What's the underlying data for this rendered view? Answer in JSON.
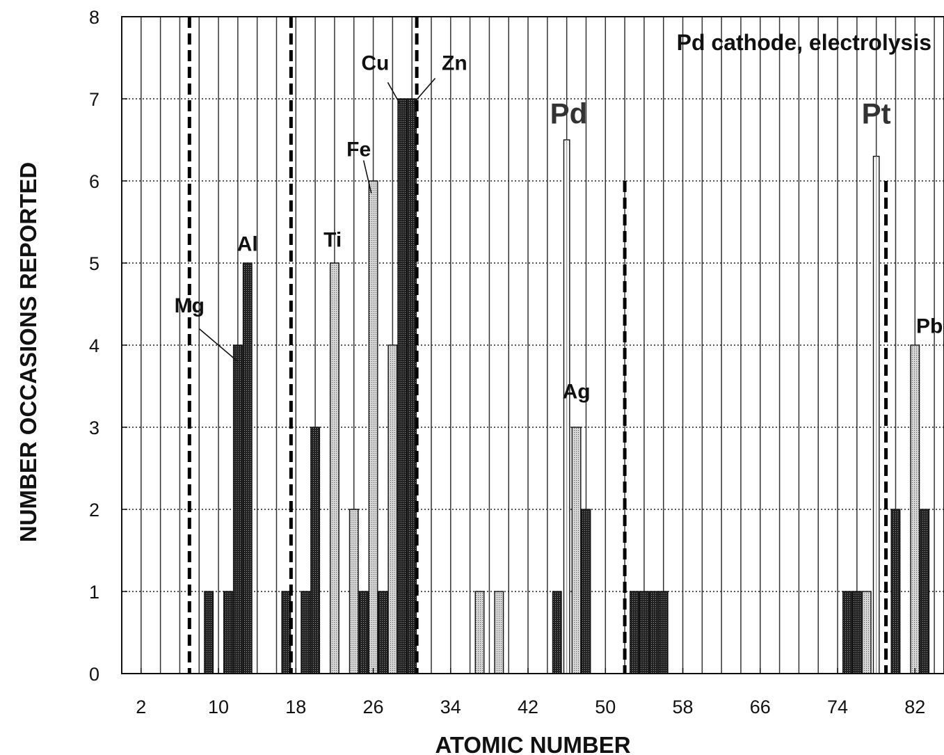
{
  "chart_data": {
    "type": "bar",
    "title": "Pd cathode, electrolysis",
    "xlabel": "ATOMIC NUMBER",
    "ylabel": "NUMBER OCCASIONS REPORTED",
    "xlim": [
      0,
      85
    ],
    "ylim": [
      0,
      8
    ],
    "xticks": [
      2,
      10,
      18,
      26,
      34,
      42,
      50,
      58,
      66,
      74,
      82
    ],
    "yticks": [
      0,
      1,
      2,
      3,
      4,
      5,
      6,
      7,
      8
    ],
    "grid": {
      "vertical_step": 2,
      "horizontal_dotted": true
    },
    "bars": [
      {
        "x": 9,
        "value": 1,
        "fill": "dark"
      },
      {
        "x": 11,
        "value": 1,
        "fill": "dark"
      },
      {
        "x": 12,
        "value": 4,
        "fill": "dark"
      },
      {
        "x": 13,
        "value": 5,
        "fill": "dark"
      },
      {
        "x": 17,
        "value": 1,
        "fill": "dark"
      },
      {
        "x": 19,
        "value": 1,
        "fill": "dark"
      },
      {
        "x": 20,
        "value": 3,
        "fill": "dark"
      },
      {
        "x": 22,
        "value": 5,
        "fill": "light"
      },
      {
        "x": 24,
        "value": 2,
        "fill": "light"
      },
      {
        "x": 25,
        "value": 1,
        "fill": "dark"
      },
      {
        "x": 26,
        "value": 6,
        "fill": "light"
      },
      {
        "x": 27,
        "value": 1,
        "fill": "dark"
      },
      {
        "x": 28,
        "value": 4,
        "fill": "light"
      },
      {
        "x": 29,
        "value": 7,
        "fill": "dark"
      },
      {
        "x": 30,
        "value": 7,
        "fill": "dark"
      },
      {
        "x": 37,
        "value": 1,
        "fill": "light"
      },
      {
        "x": 39,
        "value": 1,
        "fill": "light"
      },
      {
        "x": 45,
        "value": 1,
        "fill": "dark"
      },
      {
        "x": 46,
        "value": 6.5,
        "fill": "hollow"
      },
      {
        "x": 47,
        "value": 3,
        "fill": "light"
      },
      {
        "x": 48,
        "value": 2,
        "fill": "dark"
      },
      {
        "x": 53,
        "value": 1,
        "fill": "dark"
      },
      {
        "x": 54,
        "value": 1,
        "fill": "dark"
      },
      {
        "x": 55,
        "value": 1,
        "fill": "dark"
      },
      {
        "x": 56,
        "value": 1,
        "fill": "dark"
      },
      {
        "x": 75,
        "value": 1,
        "fill": "dark"
      },
      {
        "x": 76,
        "value": 1,
        "fill": "dark"
      },
      {
        "x": 77,
        "value": 1,
        "fill": "light"
      },
      {
        "x": 78,
        "value": 6.3,
        "fill": "hollow"
      },
      {
        "x": 80,
        "value": 2,
        "fill": "dark"
      },
      {
        "x": 82,
        "value": 4,
        "fill": "light"
      },
      {
        "x": 83,
        "value": 2,
        "fill": "dark"
      }
    ],
    "dashed_lines": [
      {
        "x": 7,
        "top": 8
      },
      {
        "x": 17.5,
        "top": 8
      },
      {
        "x": 30.5,
        "top": 8
      },
      {
        "x": 52,
        "top": 6
      },
      {
        "x": 79,
        "top": 6
      }
    ],
    "annotations": [
      {
        "text": "Mg",
        "x": 7,
        "y": 4.4,
        "pointer": {
          "from": [
            8,
            4.2
          ],
          "to": [
            12,
            3.8
          ]
        }
      },
      {
        "text": "Al",
        "x": 13,
        "y": 5.15
      },
      {
        "text": "Ti",
        "x": 21.8,
        "y": 5.2
      },
      {
        "text": "Fe",
        "x": 24.5,
        "y": 6.3,
        "pointer": {
          "from": [
            25,
            6.25
          ],
          "to": [
            25.8,
            5.85
          ]
        }
      },
      {
        "text": "Cu",
        "x": 26.2,
        "y": 7.35,
        "pointer": {
          "from": [
            27.5,
            7.2
          ],
          "to": [
            28.7,
            6.95
          ]
        }
      },
      {
        "text": "Zn",
        "x": 34.4,
        "y": 7.35,
        "pointer": {
          "from": [
            32.4,
            7.25
          ],
          "to": [
            30.2,
            6.95
          ]
        }
      },
      {
        "text": "Pd",
        "x": 46.2,
        "y": 6.7,
        "big": true
      },
      {
        "text": "Ag",
        "x": 47,
        "y": 3.35
      },
      {
        "text": "Pt",
        "x": 78,
        "y": 6.7,
        "big": true
      },
      {
        "text": "Pb",
        "x": 83.5,
        "y": 4.15
      }
    ]
  }
}
